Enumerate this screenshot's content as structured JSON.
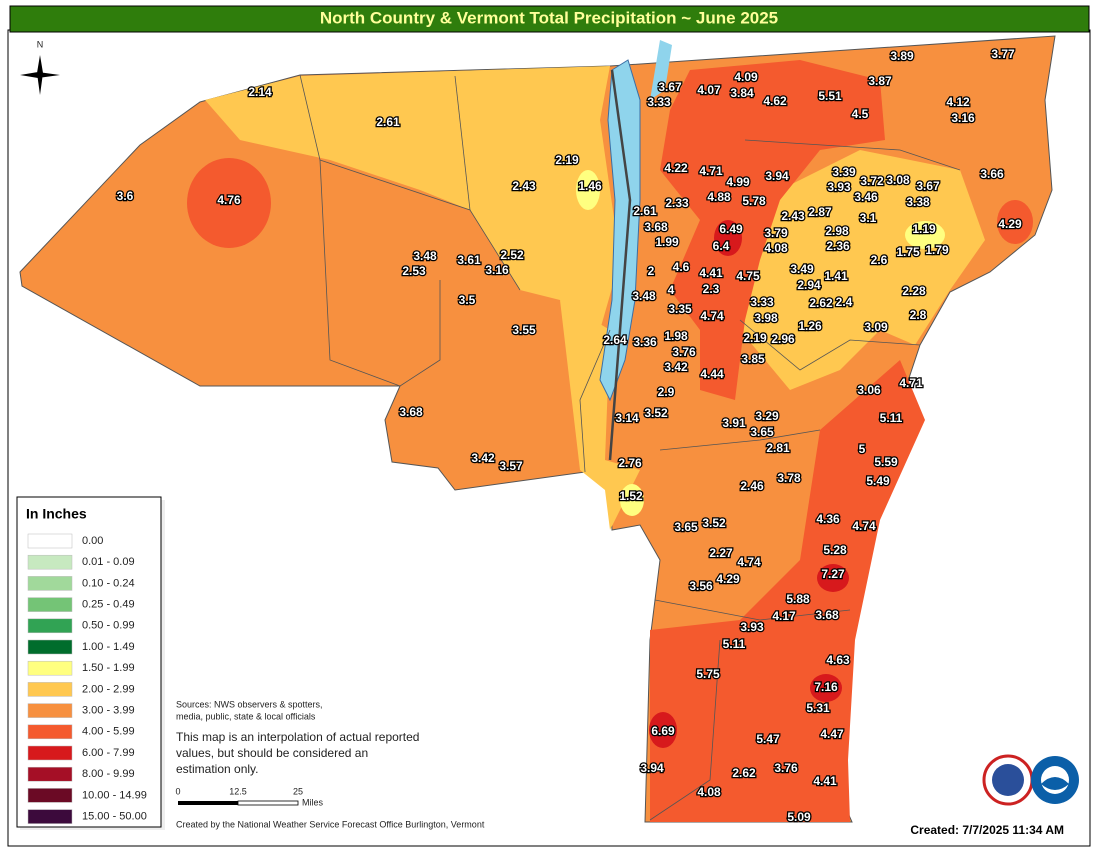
{
  "header": {
    "title": "North Country & Vermont Total Precipitation ~ June 2025"
  },
  "north_label": "N",
  "stations": [
    3.89,
    3.77,
    2.14,
    3.67,
    3.33,
    4.09,
    4.07,
    3.84,
    4.62,
    5.51,
    3.87,
    4.12,
    3.16,
    4.5,
    2.61,
    2.19,
    1.46,
    2.43,
    4.22,
    4.71,
    4.99,
    3.94,
    3.39,
    3.93,
    3.72,
    3.08,
    3.67,
    3.66,
    3.6,
    4.76,
    4.88,
    5.78,
    3.46,
    3.38,
    2.61,
    2.33,
    2.43,
    2.87,
    3.1,
    3.68,
    6.49,
    3.79,
    2.98,
    1.19,
    4.29,
    1.99,
    6.4,
    4.08,
    2.36,
    1.75,
    1.79,
    3.48,
    3.61,
    2.52,
    2.53,
    3.16,
    2,
    4.6,
    4.41,
    4.75,
    3.49,
    1.41,
    2.6,
    4,
    2.94,
    2.3,
    3.48,
    3.5,
    2.62,
    2.4,
    2.28,
    3.33,
    3.35,
    4.74,
    3.98,
    2.8,
    3.55,
    1.26,
    3.09,
    1.98,
    2.64,
    3.36,
    2.19,
    2.96,
    3.76,
    3.85,
    3.42,
    4.44,
    4.71,
    3.06,
    2.9,
    3.68,
    3.52,
    3.14,
    3.29,
    5.11,
    3.91,
    3.65,
    2.81,
    5,
    3.42,
    3.57,
    2.76,
    5.59,
    3.78,
    5.49,
    2.46,
    1.52,
    4.36,
    3.65,
    3.52,
    4.74,
    5.28,
    2.27,
    4.74,
    7.27,
    4.29,
    3.56,
    5.88,
    4.17,
    3.68,
    3.93,
    5.11,
    4.63,
    5.75,
    7.16,
    5.31,
    6.69,
    4.47,
    5.47,
    3.94,
    2.62,
    3.76,
    4.41,
    4.08,
    5.09
  ],
  "legend": {
    "title": "In Inches",
    "items": [
      {
        "label": "0.00",
        "color": "#ffffff"
      },
      {
        "label": "0.01 - 0.09",
        "color": "#c7e9c0"
      },
      {
        "label": "0.10 - 0.24",
        "color": "#a1d99b"
      },
      {
        "label": "0.25 - 0.49",
        "color": "#74c476"
      },
      {
        "label": "0.50 - 0.99",
        "color": "#31a354"
      },
      {
        "label": "1.00 - 1.49",
        "color": "#006d2c"
      },
      {
        "label": "1.50 - 1.99",
        "color": "#ffff80"
      },
      {
        "label": "2.00 - 2.99",
        "color": "#ffc850"
      },
      {
        "label": "3.00 - 3.99",
        "color": "#f7903f"
      },
      {
        "label": "4.00 - 5.99",
        "color": "#f45a2e"
      },
      {
        "label": "6.00 - 7.99",
        "color": "#d7191c"
      },
      {
        "label": "8.00 - 9.99",
        "color": "#a50f26"
      },
      {
        "label": "10.00 - 14.99",
        "color": "#6b0a25"
      },
      {
        "label": "15.00 - 50.00",
        "color": "#3c0a3c"
      }
    ]
  },
  "sources": [
    "Sources: NWS observers & spotters,",
    "media, public, state & local officials"
  ],
  "note": [
    "This map is an interpolation of actual reported",
    "values, but should be considered an",
    "estimation only."
  ],
  "scale": {
    "ticks": [
      0,
      12.5,
      25
    ],
    "unit": "Miles"
  },
  "credit": "Created by the National Weather Service Forecast Office Burlington, Vermont",
  "created": "Created: 7/7/2025 11:34 AM"
}
